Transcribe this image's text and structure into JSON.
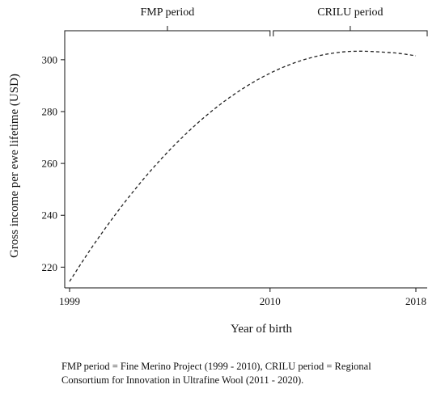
{
  "chart_data": {
    "type": "line",
    "title": "",
    "xlabel": "Year of birth",
    "ylabel": "Gross income per ewe lifetime (USD)",
    "xlim": [
      1999,
      2018
    ],
    "ylim": [
      212,
      309
    ],
    "x_ticks": [
      1999,
      2010,
      2018
    ],
    "y_ticks": [
      220,
      240,
      260,
      280,
      300
    ],
    "grid": false,
    "line_style": "dashed",
    "line_color": "#222222",
    "series": [
      {
        "x": [
          1999,
          2000,
          2001,
          2002,
          2003,
          2004,
          2005,
          2006,
          2007,
          2008,
          2009,
          2010,
          2011,
          2012,
          2013,
          2014,
          2015,
          2016,
          2017,
          2018
        ],
        "values": [
          214.5,
          225.3,
          235.4,
          244.8,
          253.5,
          261.5,
          268.8,
          275.4,
          281.3,
          286.5,
          291.0,
          294.8,
          297.9,
          300.3,
          302.0,
          303.0,
          303.3,
          303.0,
          302.5,
          301.5
        ]
      }
    ],
    "periods": [
      {
        "label": "FMP period",
        "start": 1999,
        "end": 2010
      },
      {
        "label": "CRILU period",
        "start": 2010,
        "end": 2018
      }
    ]
  },
  "footnote": {
    "line1": "FMP period = Fine Merino Project (1999 - 2010), CRILU period = Regional",
    "line2": "Consortium for Innovation in Ultrafine Wool (2011 - 2020)."
  }
}
